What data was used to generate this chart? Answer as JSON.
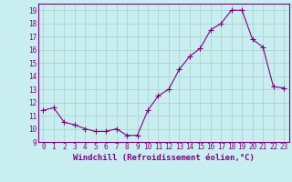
{
  "x": [
    0,
    1,
    2,
    3,
    4,
    5,
    6,
    7,
    8,
    9,
    10,
    11,
    12,
    13,
    14,
    15,
    16,
    17,
    18,
    19,
    20,
    21,
    22,
    23
  ],
  "y": [
    11.4,
    11.6,
    10.5,
    10.3,
    10.0,
    9.8,
    9.8,
    10.0,
    9.5,
    9.5,
    11.4,
    12.5,
    13.0,
    14.5,
    15.5,
    16.1,
    17.5,
    18.0,
    19.0,
    19.0,
    16.8,
    16.2,
    13.2,
    13.1
  ],
  "line_color": "#800080",
  "marker": "+",
  "marker_size": 4,
  "bg_color": "#c8eef0",
  "grid_color": "#aacccc",
  "xlabel": "Windchill (Refroidissement éolien,°C)",
  "ylabel": "",
  "title": "",
  "xlim": [
    -0.5,
    23.5
  ],
  "ylim": [
    9,
    19.5
  ],
  "yticks": [
    9,
    10,
    11,
    12,
    13,
    14,
    15,
    16,
    17,
    18,
    19
  ],
  "xticks": [
    0,
    1,
    2,
    3,
    4,
    5,
    6,
    7,
    8,
    9,
    10,
    11,
    12,
    13,
    14,
    15,
    16,
    17,
    18,
    19,
    20,
    21,
    22,
    23
  ],
  "tick_color": "#800080",
  "tick_fontsize": 5.5,
  "xlabel_fontsize": 6.5,
  "spine_color": "#800080",
  "line_width": 0.8,
  "marker_color": "#800080"
}
